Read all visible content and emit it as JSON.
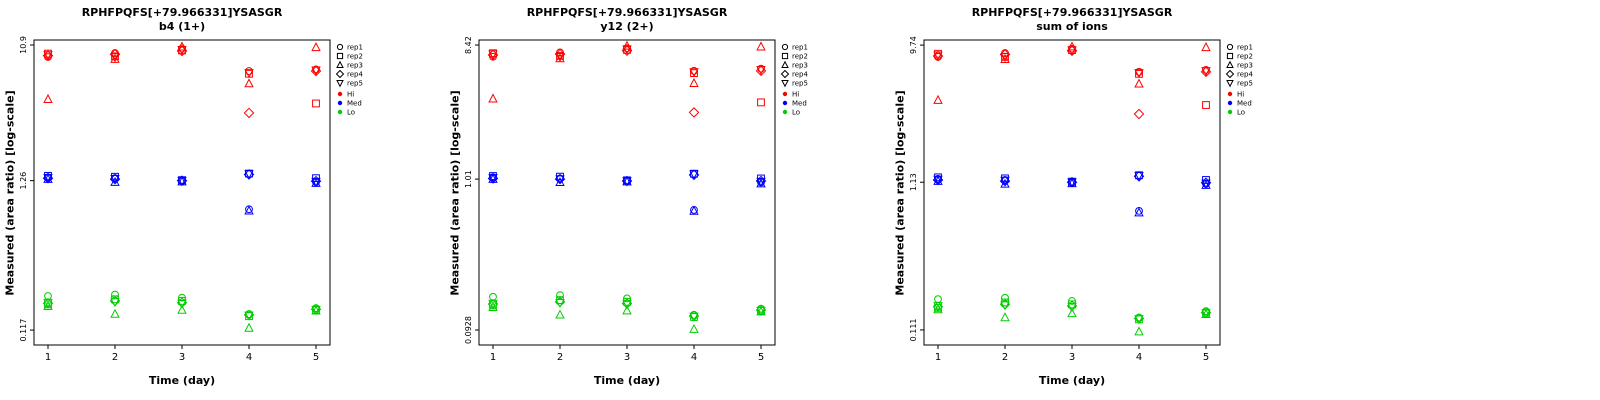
{
  "page": {
    "background": "#ffffff"
  },
  "chart_data": [
    {
      "type": "scatter",
      "title": "RPHFPQFS[+79.966331]YSASGR",
      "subtitle": "b4 (1+)",
      "xlabel": "Time (day)",
      "ylabel": "Measured (area ratio) [log-scale]",
      "x_ticks": [
        1,
        2,
        3,
        4,
        5
      ],
      "y_ticks": [
        0.117,
        1.26,
        10.9
      ],
      "y_tick_labels": [
        "0.117",
        "1.26",
        "10.9"
      ],
      "y_range": [
        0.0923,
        11.8
      ],
      "legend": {
        "reps": [
          "rep1",
          "rep2",
          "rep3",
          "rep4",
          "rep5"
        ],
        "levels": [
          "Hi",
          "Med",
          "Lo"
        ]
      },
      "series": [
        {
          "name": "Hi",
          "color": "#FF0000",
          "reps": [
            [
              9.0,
              9.6,
              10.3,
              7.2,
              7.4
            ],
            [
              9.5,
              9.1,
              10.0,
              6.9,
              4.3
            ],
            [
              4.6,
              8.7,
              10.6,
              5.9,
              10.5
            ],
            [
              9.2,
              9.4,
              9.9,
              3.7,
              7.2
            ],
            [
              9.3,
              9.0,
              10.1,
              7.0,
              7.3
            ]
          ]
        },
        {
          "name": "Med",
          "color": "#0000FF",
          "reps": [
            [
              1.33,
              1.31,
              1.25,
              0.8,
              1.23
            ],
            [
              1.36,
              1.34,
              1.27,
              1.41,
              1.31
            ],
            [
              1.29,
              1.23,
              1.24,
              0.78,
              1.21
            ],
            [
              1.31,
              1.29,
              1.26,
              1.39,
              1.25
            ],
            [
              1.32,
              1.3,
              1.26,
              1.4,
              1.24
            ]
          ]
        },
        {
          "name": "Lo",
          "color": "#00CD00",
          "reps": [
            [
              0.201,
              0.206,
              0.196,
              0.151,
              0.166
            ],
            [
              0.176,
              0.191,
              0.186,
              0.146,
              0.161
            ],
            [
              0.171,
              0.151,
              0.161,
              0.121,
              0.159
            ],
            [
              0.179,
              0.186,
              0.181,
              0.149,
              0.163
            ],
            [
              0.181,
              0.183,
              0.179,
              0.148,
              0.162
            ]
          ]
        }
      ]
    },
    {
      "type": "scatter",
      "title": "RPHFPQFS[+79.966331]YSASGR",
      "subtitle": "y12 (2+)",
      "xlabel": "Time (day)",
      "ylabel": "Measured (area ratio) [log-scale]",
      "x_ticks": [
        1,
        2,
        3,
        4,
        5
      ],
      "y_ticks": [
        0.0928,
        1.01,
        8.42
      ],
      "y_tick_labels": [
        "0.0928",
        "1.01",
        "8.42"
      ],
      "y_range": [
        0.0732,
        9.12
      ],
      "legend": {
        "reps": [
          "rep1",
          "rep2",
          "rep3",
          "rep4",
          "rep5"
        ],
        "levels": [
          "Hi",
          "Med",
          "Lo"
        ]
      },
      "series": [
        {
          "name": "Hi",
          "color": "#FF0000",
          "reps": [
            [
              7.0,
              7.5,
              8.0,
              5.6,
              5.8
            ],
            [
              7.4,
              7.1,
              7.8,
              5.4,
              3.4
            ],
            [
              3.6,
              6.8,
              8.3,
              4.6,
              8.2
            ],
            [
              7.2,
              7.3,
              7.7,
              2.9,
              5.6
            ],
            [
              7.3,
              7.0,
              7.9,
              5.5,
              5.7
            ]
          ]
        },
        {
          "name": "Med",
          "color": "#0000FF",
          "reps": [
            [
              1.04,
              1.02,
              0.98,
              0.62,
              0.96
            ],
            [
              1.06,
              1.05,
              0.99,
              1.1,
              1.02
            ],
            [
              1.01,
              0.96,
              0.97,
              0.61,
              0.94
            ],
            [
              1.02,
              1.01,
              0.98,
              1.08,
              0.98
            ],
            [
              1.03,
              1.01,
              0.98,
              1.09,
              0.97
            ]
          ]
        },
        {
          "name": "Lo",
          "color": "#00CD00",
          "reps": [
            [
              0.157,
              0.161,
              0.153,
              0.118,
              0.13
            ],
            [
              0.137,
              0.149,
              0.145,
              0.114,
              0.126
            ],
            [
              0.133,
              0.118,
              0.126,
              0.094,
              0.124
            ],
            [
              0.14,
              0.145,
              0.141,
              0.116,
              0.127
            ],
            [
              0.141,
              0.143,
              0.14,
              0.115,
              0.126
            ]
          ]
        }
      ]
    },
    {
      "type": "scatter",
      "title": "RPHFPQFS[+79.966331]YSASGR",
      "subtitle": "sum of ions",
      "xlabel": "Time (day)",
      "ylabel": "Measured (area ratio) [log-scale]",
      "x_ticks": [
        1,
        2,
        3,
        4,
        5
      ],
      "y_ticks": [
        0.111,
        1.13,
        9.74
      ],
      "y_tick_labels": [
        "0.111",
        "1.13",
        "9.74"
      ],
      "y_range": [
        0.0876,
        10.55
      ],
      "legend": {
        "reps": [
          "rep1",
          "rep2",
          "rep3",
          "rep4",
          "rep5"
        ],
        "levels": [
          "Hi",
          "Med",
          "Lo"
        ]
      },
      "series": [
        {
          "name": "Hi",
          "color": "#FF0000",
          "reps": [
            [
              8.1,
              8.6,
              9.2,
              6.4,
              6.6
            ],
            [
              8.5,
              8.1,
              9.0,
              6.2,
              3.8
            ],
            [
              4.1,
              7.8,
              9.5,
              5.3,
              9.4
            ],
            [
              8.2,
              8.4,
              8.9,
              3.3,
              6.4
            ],
            [
              8.3,
              8.1,
              9.0,
              6.3,
              6.5
            ]
          ]
        },
        {
          "name": "Med",
          "color": "#0000FF",
          "reps": [
            [
              1.19,
              1.17,
              1.12,
              0.72,
              1.1
            ],
            [
              1.22,
              1.2,
              1.14,
              1.26,
              1.17
            ],
            [
              1.15,
              1.1,
              1.11,
              0.7,
              1.08
            ],
            [
              1.17,
              1.15,
              1.13,
              1.24,
              1.12
            ],
            [
              1.18,
              1.16,
              1.13,
              1.25,
              1.11
            ]
          ]
        },
        {
          "name": "Lo",
          "color": "#00CD00",
          "reps": [
            [
              0.18,
              0.184,
              0.175,
              0.135,
              0.149
            ],
            [
              0.157,
              0.171,
              0.166,
              0.131,
              0.144
            ],
            [
              0.153,
              0.135,
              0.144,
              0.108,
              0.142
            ],
            [
              0.16,
              0.166,
              0.162,
              0.133,
              0.146
            ],
            [
              0.162,
              0.164,
              0.16,
              0.132,
              0.145
            ]
          ]
        }
      ]
    }
  ]
}
